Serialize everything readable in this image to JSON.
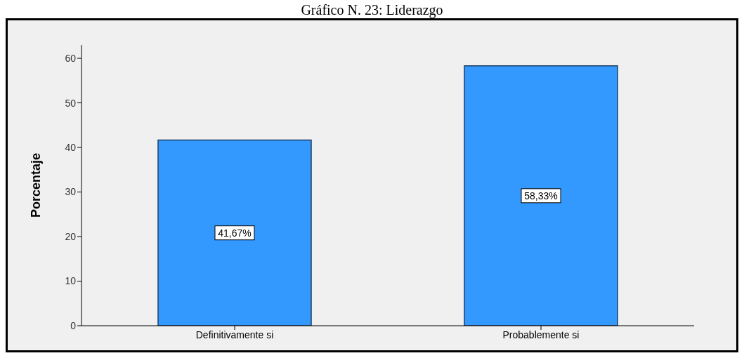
{
  "chart_data": {
    "type": "bar",
    "title": "Gráfico N. 23: Liderazgo",
    "ylabel": "Porcentaje",
    "categories": [
      "Definitivamente si",
      "Probablemente si"
    ],
    "values": [
      41.67,
      58.33
    ],
    "color": "#3399ff",
    "value_labels": [
      "41,67%",
      "58,33%"
    ],
    "ylim": [
      0,
      63
    ],
    "yticks": [
      0,
      10,
      20,
      30,
      40,
      50,
      60
    ],
    "grid": false,
    "legend": false
  }
}
